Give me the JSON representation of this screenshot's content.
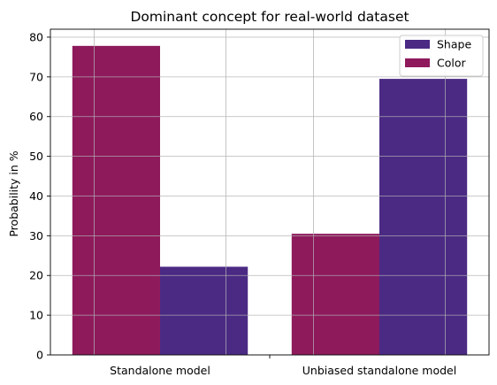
{
  "chart_data": {
    "type": "bar",
    "title": "Dominant concept for real-world dataset",
    "xlabel": "",
    "ylabel": "Probability in %",
    "categories": [
      "Standalone model",
      "Unbiased standalone model"
    ],
    "series": [
      {
        "name": "Color",
        "color": "#8e1a5c",
        "values": [
          77.8,
          30.5
        ]
      },
      {
        "name": "Shape",
        "color": "#4b2a84",
        "values": [
          22.2,
          69.5
        ]
      }
    ],
    "ylim": [
      0,
      82
    ],
    "yticks": [
      0,
      10,
      20,
      30,
      40,
      50,
      60,
      70,
      80
    ],
    "grid": true,
    "legend": {
      "placement": "top-right",
      "order": [
        "Shape",
        "Color"
      ]
    }
  }
}
